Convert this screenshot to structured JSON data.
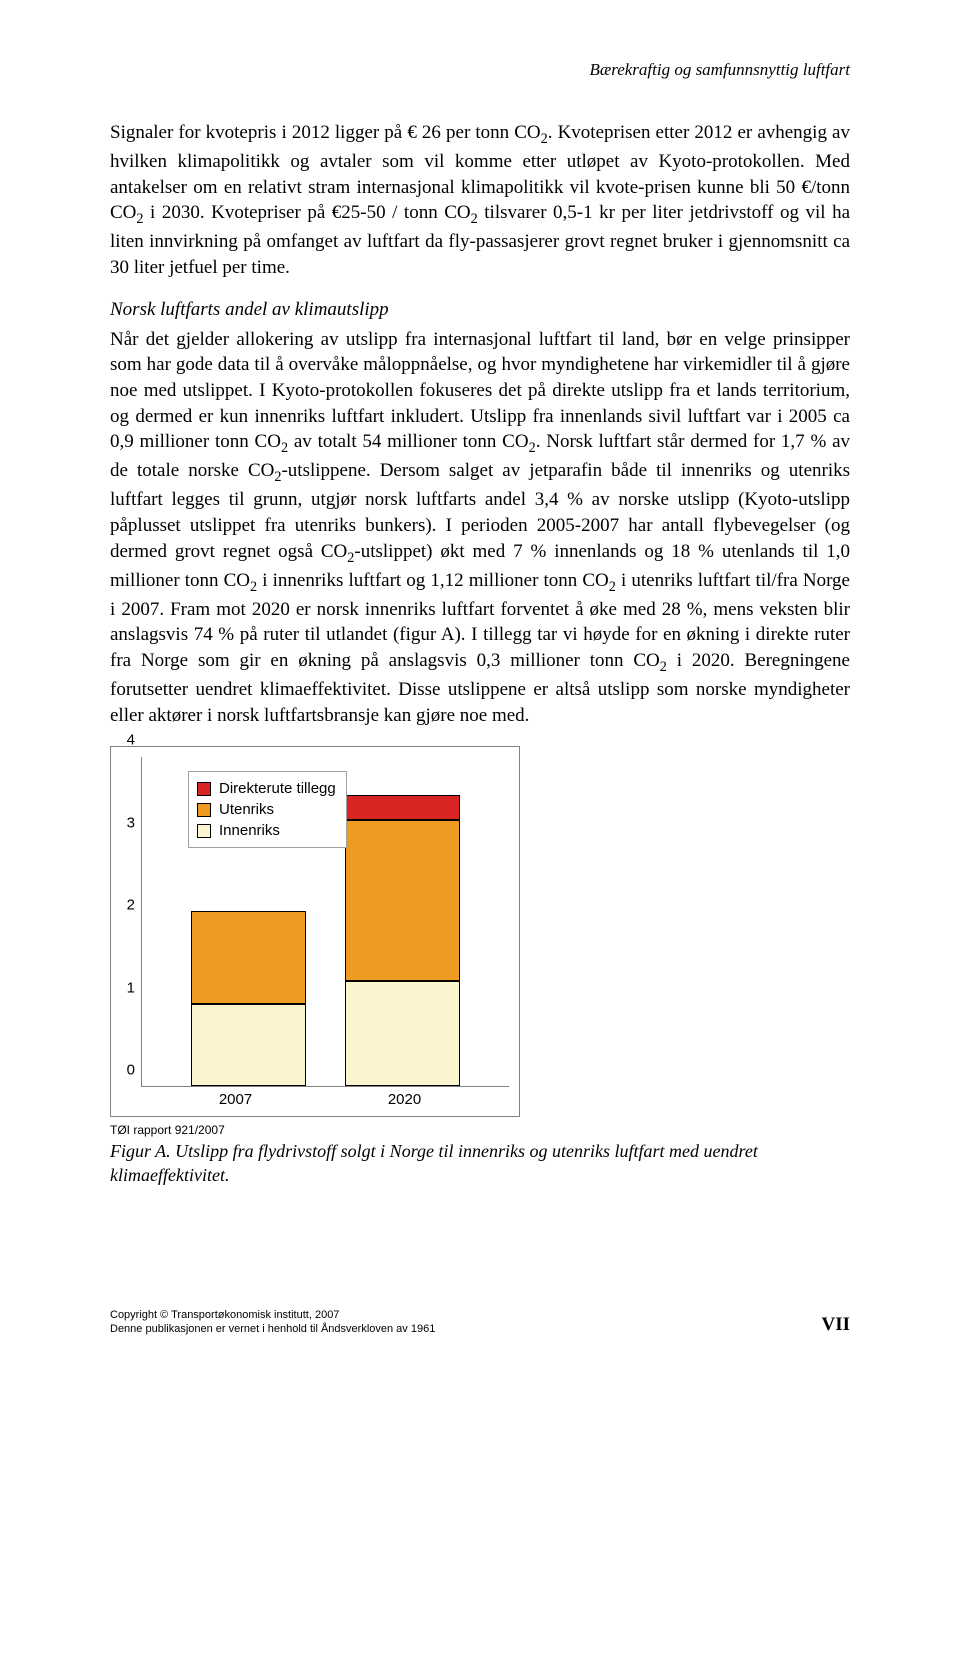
{
  "header": "Bærekraftig og samfunnsnyttig luftfart",
  "para1_html": "Signaler for kvotepris i 2012 ligger på € 26 per tonn CO<sub>2</sub>. Kvoteprisen etter 2012 er avhengig av hvilken klimapolitikk og avtaler som vil komme etter utløpet av Kyoto-protokollen. Med antakelser om en relativt stram internasjonal klimapolitikk vil kvote-prisen kunne bli 50 €/tonn CO<sub>2</sub> i 2030. Kvotepriser på €25-50 / tonn CO<sub>2</sub> tilsvarer 0,5-1 kr per liter jetdrivstoff og vil ha liten innvirkning på omfanget av luftfart da fly-passasjerer grovt regnet bruker i gjennomsnitt ca 30 liter jetfuel per time.",
  "section_heading": "Norsk luftfarts andel av klimautslipp",
  "para2_html": "Når det gjelder allokering av utslipp fra internasjonal luftfart til land, bør en velge prinsipper som har gode data til å overvåke måloppnåelse, og hvor myndighetene har virkemidler til å gjøre noe med utslippet. I Kyoto-protokollen fokuseres det på direkte utslipp fra et lands territorium, og dermed er kun innenriks luftfart inkludert. Utslipp fra innenlands sivil luftfart var i 2005 ca 0,9 millioner tonn CO<sub>2</sub> av totalt 54 millioner tonn CO<sub>2</sub>. Norsk luftfart står dermed for 1,7 % av de totale norske CO<sub>2</sub>-utslippene. Dersom salget av jetparafin både til innenriks og utenriks luftfart legges til grunn, utgjør norsk luftfarts andel 3,4 % av norske utslipp (Kyoto-utslipp påplusset utslippet fra utenriks bunkers). I perioden 2005-2007 har antall flybevegelser (og dermed grovt regnet også CO<sub>2</sub>-utslippet) økt med 7 % innenlands og 18 % utenlands til 1,0 millioner tonn CO<sub>2</sub> i innenriks luftfart og 1,12 millioner tonn CO<sub>2</sub> i utenriks luftfart til/fra Norge i 2007. Fram mot 2020 er norsk innenriks luftfart forventet å øke med 28 %, mens veksten blir anslagsvis 74 % på ruter til utlandet (figur A). I tillegg tar vi høyde for en økning i direkte ruter fra Norge som gir en økning på anslagsvis 0,3 millioner tonn CO<sub>2</sub> i 2020. Beregningene forutsetter uendret klimaeffektivitet. Disse utslippene er altså utslipp som norske myndigheter eller aktører i norsk luftfartsbransje kan gjøre noe med.",
  "chart": {
    "type": "stacked-bar",
    "ymax": 4,
    "yticks": [
      0,
      1,
      2,
      3,
      4
    ],
    "categories": [
      "2007",
      "2020"
    ],
    "series": [
      {
        "name": "Innenriks",
        "color": "#faf4cf",
        "values": [
          1.0,
          1.28
        ]
      },
      {
        "name": "Utenriks",
        "color": "#ee9b22",
        "values": [
          1.12,
          1.95
        ]
      },
      {
        "name": "Direkterute tillegg",
        "color": "#d92424",
        "values": [
          0.0,
          0.3
        ]
      }
    ],
    "legend": [
      {
        "label": "Direkterute tillegg",
        "color": "#d92424"
      },
      {
        "label": "Utenriks",
        "color": "#ee9b22"
      },
      {
        "label": "Innenriks",
        "color": "#faf4cf"
      }
    ],
    "background": "#ffffff",
    "border_color": "#808080"
  },
  "chart_source": "TØI rapport 921/2007",
  "figure_caption": "Figur A. Utslipp fra flydrivstoff solgt i Norge til innenriks og utenriks luftfart med uendret klimaeffektivitet.",
  "footer": {
    "line1": "Copyright © Transportøkonomisk institutt, 2007",
    "line2": "Denne publikasjonen er vernet i henhold til Åndsverkloven av 1961",
    "page": "VII"
  }
}
